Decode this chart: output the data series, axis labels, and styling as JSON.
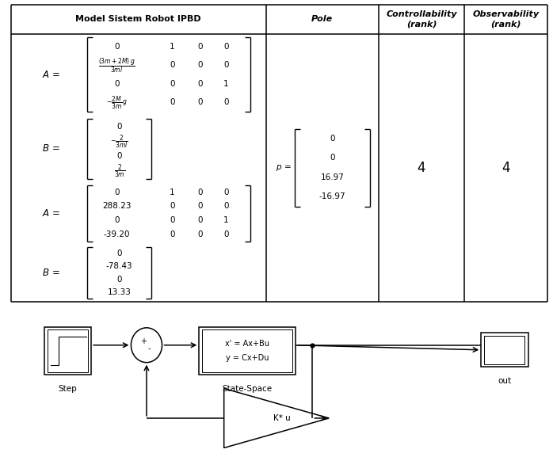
{
  "col_headers": [
    "Model Sistem Robot IPBD",
    "Pole",
    "Controllability\n(rank)",
    "Observability\n(rank)"
  ],
  "controllability_value": "4",
  "observability_value": "4",
  "background_color": "#ffffff"
}
